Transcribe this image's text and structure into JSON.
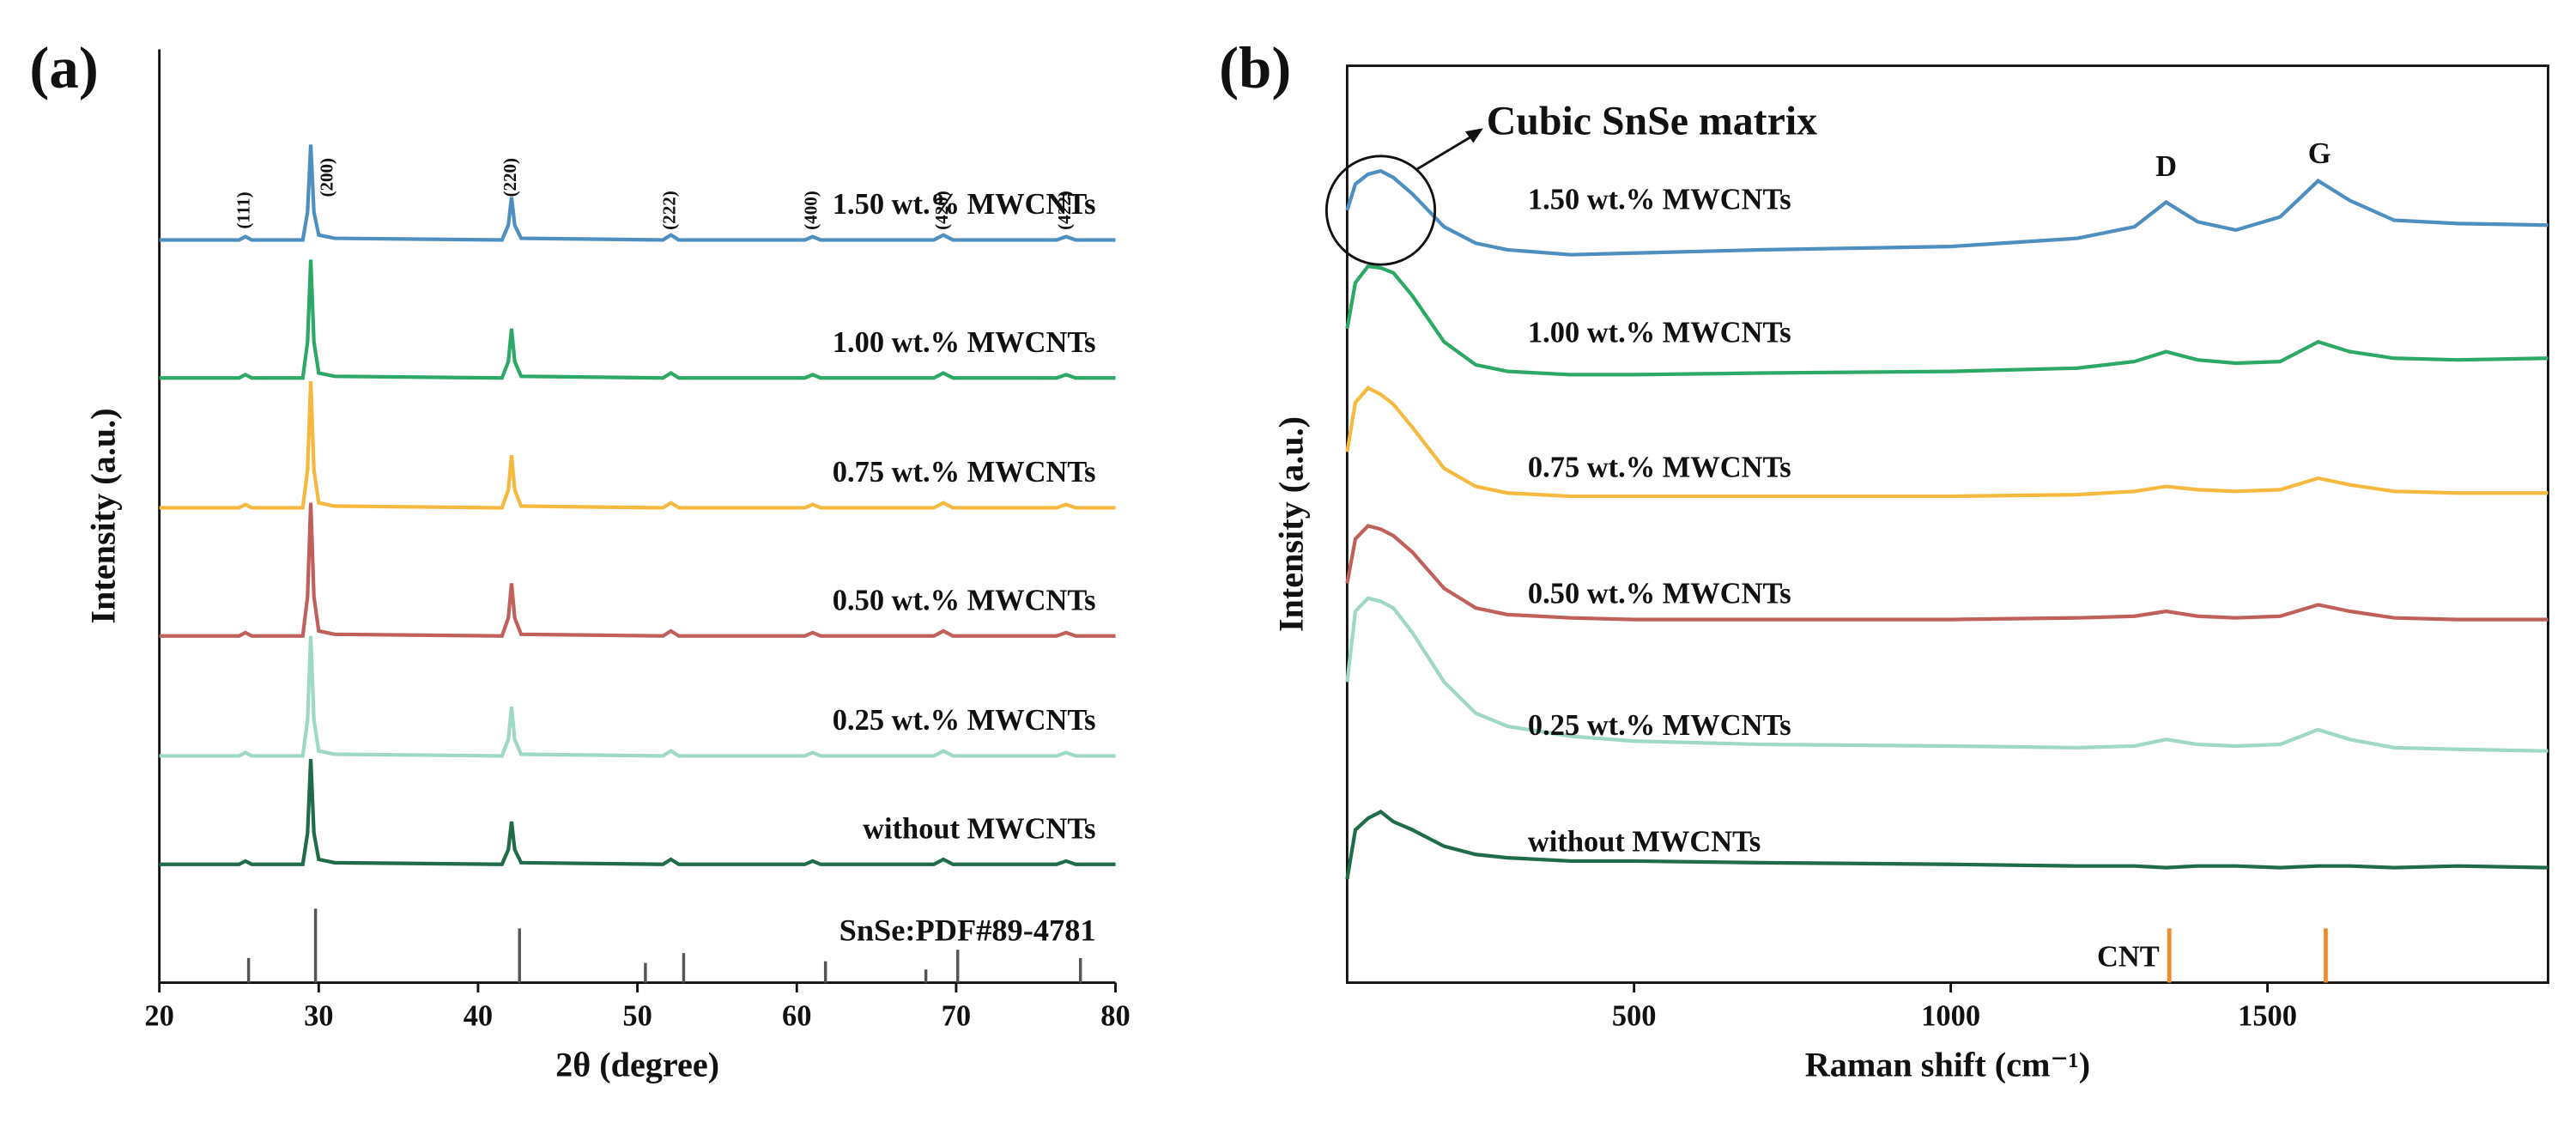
{
  "chart_data": [
    {
      "type": "line",
      "panel_label": "(a)",
      "x_label": "2θ (degree)",
      "y_label": "Intensity (a.u.)",
      "xlim": [
        20,
        80
      ],
      "ylim": [
        0,
        568
      ],
      "xticks": [
        20,
        30,
        40,
        50,
        60,
        70,
        80
      ],
      "x": [
        20,
        25,
        25.4,
        25.8,
        29,
        29.3,
        29.5,
        29.7,
        30,
        31,
        41.5,
        41.9,
        42.1,
        42.3,
        42.7,
        51.6,
        52.1,
        52.6,
        60.5,
        61,
        61.5,
        68.6,
        69.2,
        69.8,
        76.3,
        76.9,
        77.5,
        80
      ],
      "series": [
        {
          "name": "1.50 wt.% MWCNTs",
          "color": "#4f8fc0",
          "values": [
            452,
            452,
            454,
            452,
            452,
            469,
            510,
            469,
            455,
            453,
            452,
            461,
            478,
            461,
            453,
            452,
            455,
            452,
            452,
            454,
            452,
            452,
            455,
            452,
            452,
            454,
            452,
            452
          ]
        },
        {
          "name": "1.00 wt.% MWCNTs",
          "color": "#2ea866",
          "values": [
            368,
            368,
            370,
            368,
            368,
            390,
            440,
            390,
            371,
            369,
            368,
            378,
            398,
            378,
            369,
            368,
            371,
            368,
            368,
            370,
            368,
            368,
            371,
            368,
            368,
            370,
            368,
            368
          ]
        },
        {
          "name": "0.75 wt.% MWCNTs",
          "color": "#f5b940",
          "values": [
            289,
            289,
            291,
            289,
            289,
            312,
            366,
            312,
            292,
            290,
            289,
            300,
            321,
            300,
            290,
            289,
            292,
            289,
            289,
            291,
            289,
            289,
            292,
            289,
            289,
            291,
            289,
            289
          ]
        },
        {
          "name": "0.50 wt.% MWCNTs",
          "color": "#c0605a",
          "values": [
            211,
            211,
            213,
            211,
            211,
            235,
            292,
            235,
            214,
            212,
            211,
            222,
            243,
            222,
            212,
            211,
            214,
            211,
            211,
            213,
            211,
            211,
            214,
            211,
            211,
            213,
            211,
            211
          ]
        },
        {
          "name": "0.25 wt.% MWCNTs",
          "color": "#9fd8c4",
          "values": [
            138,
            138,
            140,
            138,
            138,
            160,
            211,
            160,
            141,
            139,
            138,
            148,
            168,
            148,
            139,
            138,
            141,
            138,
            138,
            140,
            138,
            138,
            141,
            138,
            138,
            140,
            138,
            138
          ]
        },
        {
          "name": "without  MWCNTs",
          "color": "#1f6b4a",
          "values": [
            72,
            72,
            74,
            72,
            72,
            91,
            136,
            91,
            75,
            73,
            72,
            81,
            98,
            81,
            73,
            72,
            75,
            72,
            72,
            74,
            72,
            72,
            75,
            72,
            72,
            74,
            72,
            72
          ]
        }
      ],
      "reference": {
        "name": "SnSe:PDF#89-4781",
        "color": "#555555",
        "x": [
          25.6,
          29.8,
          42.6,
          50.5,
          52.9,
          61.8,
          68.1,
          70.1,
          77.8
        ],
        "values": [
          15,
          45,
          33,
          12,
          18,
          13,
          8,
          20,
          15
        ]
      },
      "annotations": [
        {
          "text": "(111)",
          "x": 25.4,
          "y": 470
        },
        {
          "text": "(200)",
          "x": 30.6,
          "y": 490
        },
        {
          "text": "(220)",
          "x": 42.1,
          "y": 490
        },
        {
          "text": "(222)",
          "x": 52.1,
          "y": 470
        },
        {
          "text": "(400)",
          "x": 61,
          "y": 470
        },
        {
          "text": "(420)",
          "x": 69.2,
          "y": 470
        },
        {
          "text": "(422)",
          "x": 76.9,
          "y": 470
        }
      ]
    },
    {
      "type": "line",
      "panel_label": "(b)",
      "x_label": "Raman shift (cm⁻¹)",
      "y_label": "Intensity (a.u.)",
      "xlim": [
        47,
        1943
      ],
      "ylim": [
        0,
        558
      ],
      "xticks": [
        500,
        1000,
        1500
      ],
      "x": [
        47,
        60,
        80,
        100,
        120,
        150,
        200,
        250,
        300,
        400,
        500,
        700,
        1000,
        1200,
        1290,
        1340,
        1390,
        1450,
        1520,
        1580,
        1630,
        1700,
        1800,
        1943
      ],
      "series": [
        {
          "name": "1.50 wt.% MWCNTs",
          "color": "#4f8fc0",
          "values": [
            470,
            486,
            492,
            494,
            490,
            480,
            460,
            450,
            446,
            443,
            444,
            446,
            448,
            453,
            460,
            475,
            463,
            458,
            466,
            488,
            476,
            464,
            462,
            461
          ]
        },
        {
          "name": "1.00 wt.% MWCNTs",
          "color": "#2ea866",
          "values": [
            398,
            426,
            436,
            435,
            432,
            418,
            390,
            376,
            372,
            370,
            370,
            371,
            372,
            374,
            378,
            384,
            379,
            377,
            378,
            390,
            384,
            380,
            379,
            380
          ]
        },
        {
          "name": "0.75 wt.% MWCNTs",
          "color": "#f5b940",
          "values": [
            323,
            353,
            362,
            358,
            352,
            338,
            313,
            302,
            298,
            296,
            296,
            296,
            296,
            297,
            299,
            302,
            300,
            299,
            300,
            307,
            303,
            299,
            298,
            298
          ]
        },
        {
          "name": "0.50 wt.% MWCNTs",
          "color": "#c0605a",
          "values": [
            243,
            270,
            278,
            276,
            272,
            262,
            240,
            228,
            224,
            222,
            221,
            221,
            221,
            222,
            223,
            226,
            223,
            222,
            223,
            230,
            226,
            222,
            221,
            221
          ]
        },
        {
          "name": "0.25 wt.% MWCNTs",
          "color": "#9fd8c4",
          "values": [
            183,
            226,
            234,
            232,
            228,
            213,
            183,
            164,
            156,
            150,
            147,
            145,
            144,
            143,
            144,
            148,
            145,
            144,
            145,
            154,
            148,
            143,
            142,
            141
          ]
        },
        {
          "name": "without  MWCNTs",
          "color": "#1f6b4a",
          "values": [
            63,
            93,
            100,
            104,
            98,
            93,
            83,
            78,
            76,
            74,
            74,
            73,
            72,
            71,
            71,
            70,
            71,
            71,
            70,
            71,
            71,
            70,
            71,
            70
          ]
        }
      ],
      "reference": {
        "name": "CNT",
        "color": "#f08c2a",
        "x": [
          1345,
          1592
        ],
        "values": [
          33,
          33
        ]
      },
      "annotations": [
        {
          "text": "D",
          "x": 1340,
          "y": 495
        },
        {
          "text": "G",
          "x": 1582,
          "y": 503
        }
      ],
      "callout": {
        "text": "Cubic SnSe matrix",
        "x": 267,
        "y": 522
      }
    }
  ]
}
